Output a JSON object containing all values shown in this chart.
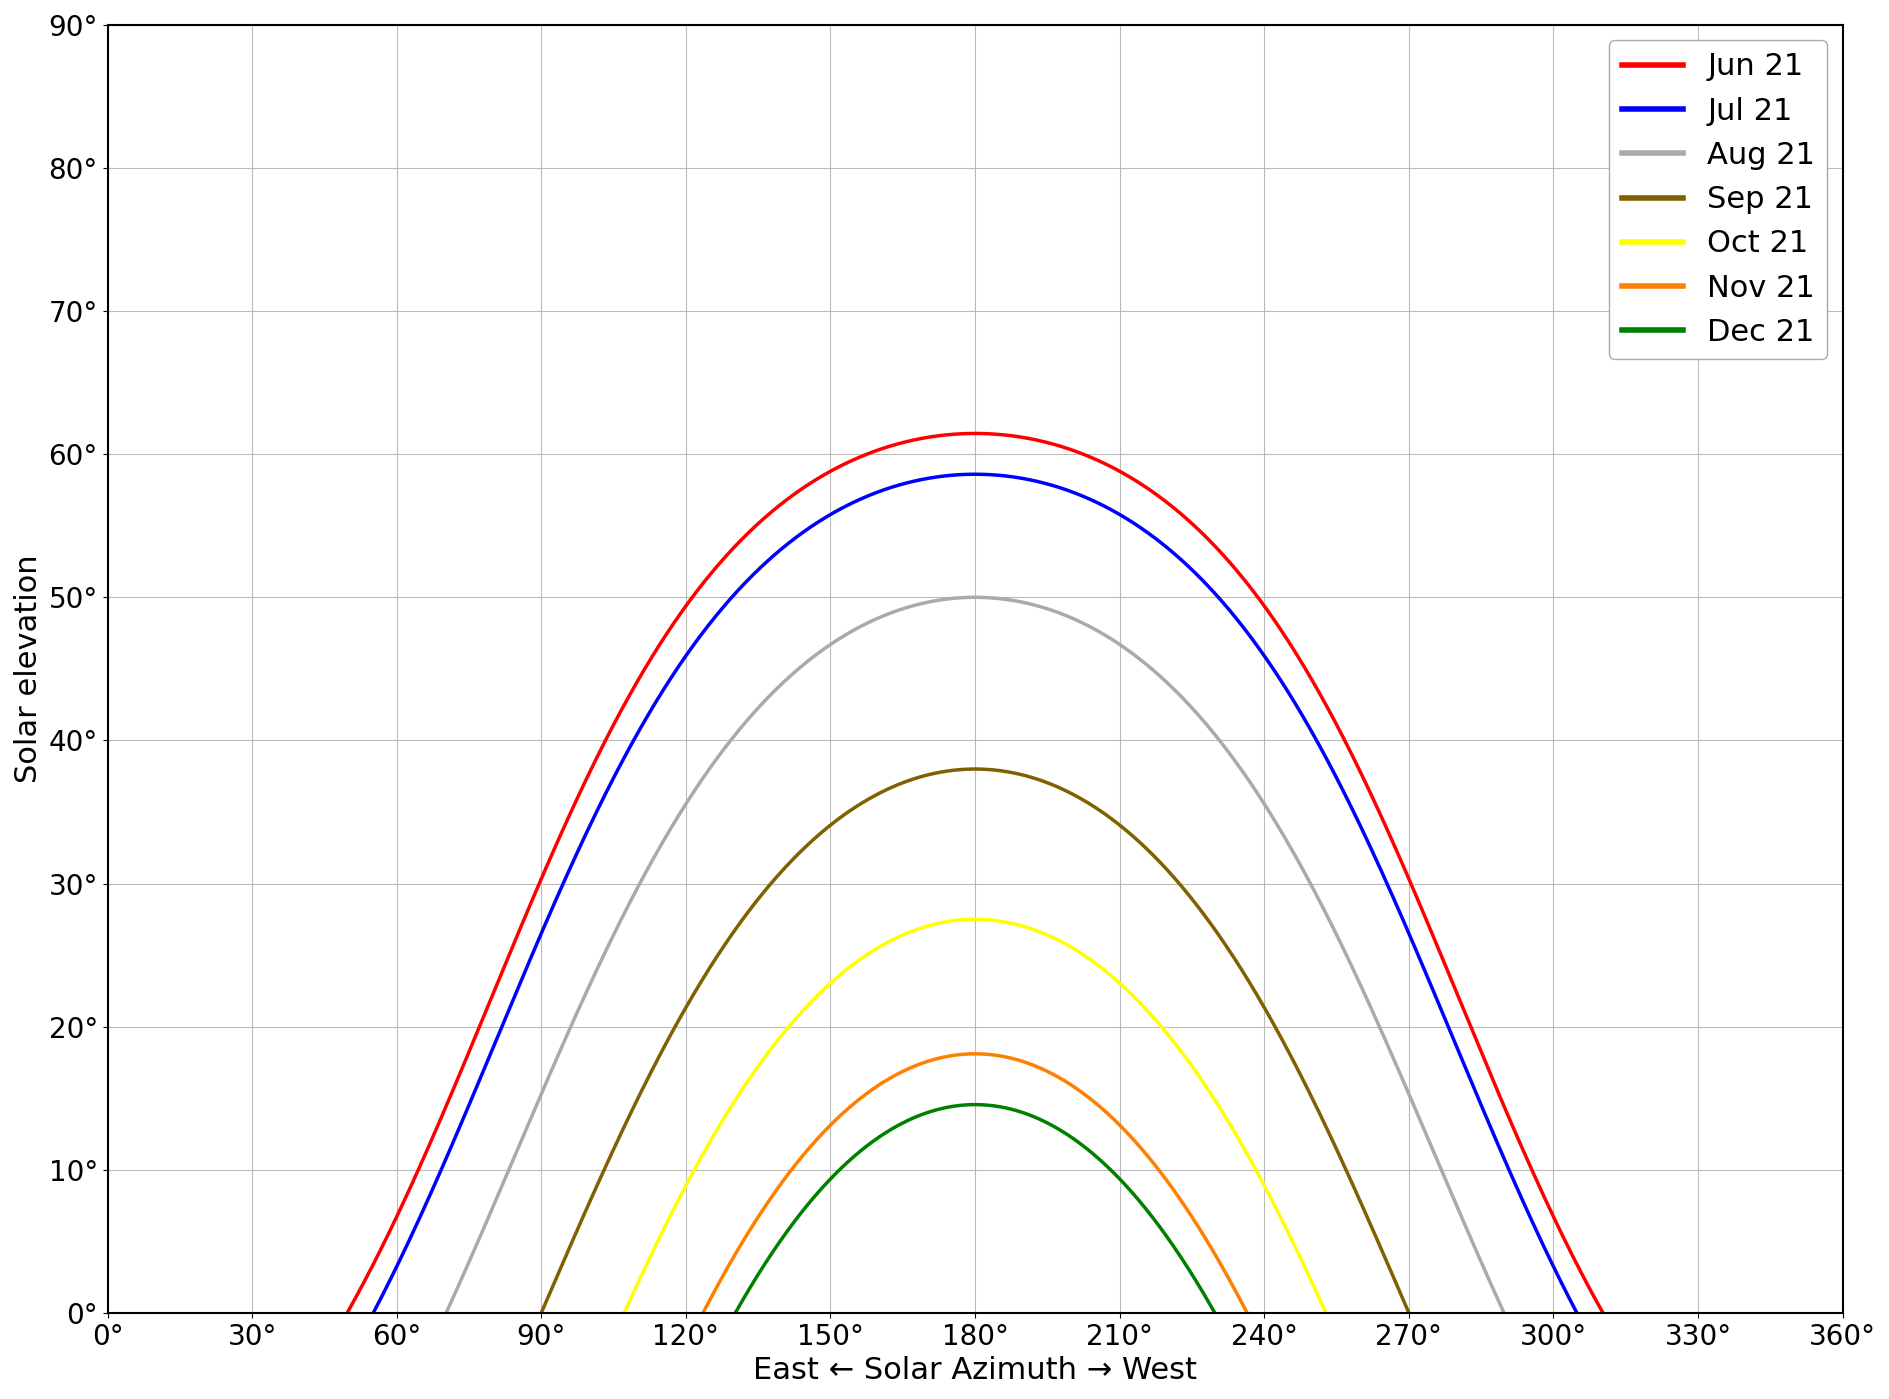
{
  "xlabel": "East ← Solar Azimuth → West",
  "ylabel": "Solar elevation",
  "xlim": [
    0,
    360
  ],
  "ylim": [
    0,
    90
  ],
  "xticks": [
    0,
    30,
    60,
    90,
    120,
    150,
    180,
    210,
    240,
    270,
    300,
    330,
    360
  ],
  "yticks": [
    0,
    10,
    20,
    30,
    40,
    50,
    60,
    70,
    80,
    90
  ],
  "latitude_deg": 52.0,
  "months": [
    {
      "label": "Jun 21",
      "color": "#ff0000",
      "declination_deg": 23.45
    },
    {
      "label": "Jul 21",
      "color": "#0000ff",
      "declination_deg": 20.6
    },
    {
      "label": "Aug 21",
      "color": "#aaaaaa",
      "declination_deg": 12.0
    },
    {
      "label": "Sep 21",
      "color": "#806000",
      "declination_deg": 0.0
    },
    {
      "label": "Oct 21",
      "color": "#ffff00",
      "declination_deg": -10.5
    },
    {
      "label": "Nov 21",
      "color": "#ff8000",
      "declination_deg": -19.9
    },
    {
      "label": "Dec 21",
      "color": "#008000",
      "declination_deg": -23.45
    }
  ],
  "line_width": 2.5,
  "background_color": "#ffffff",
  "grid_color": "#bbbbbb",
  "legend_fontsize": 22,
  "tick_fontsize": 20,
  "label_fontsize": 22
}
